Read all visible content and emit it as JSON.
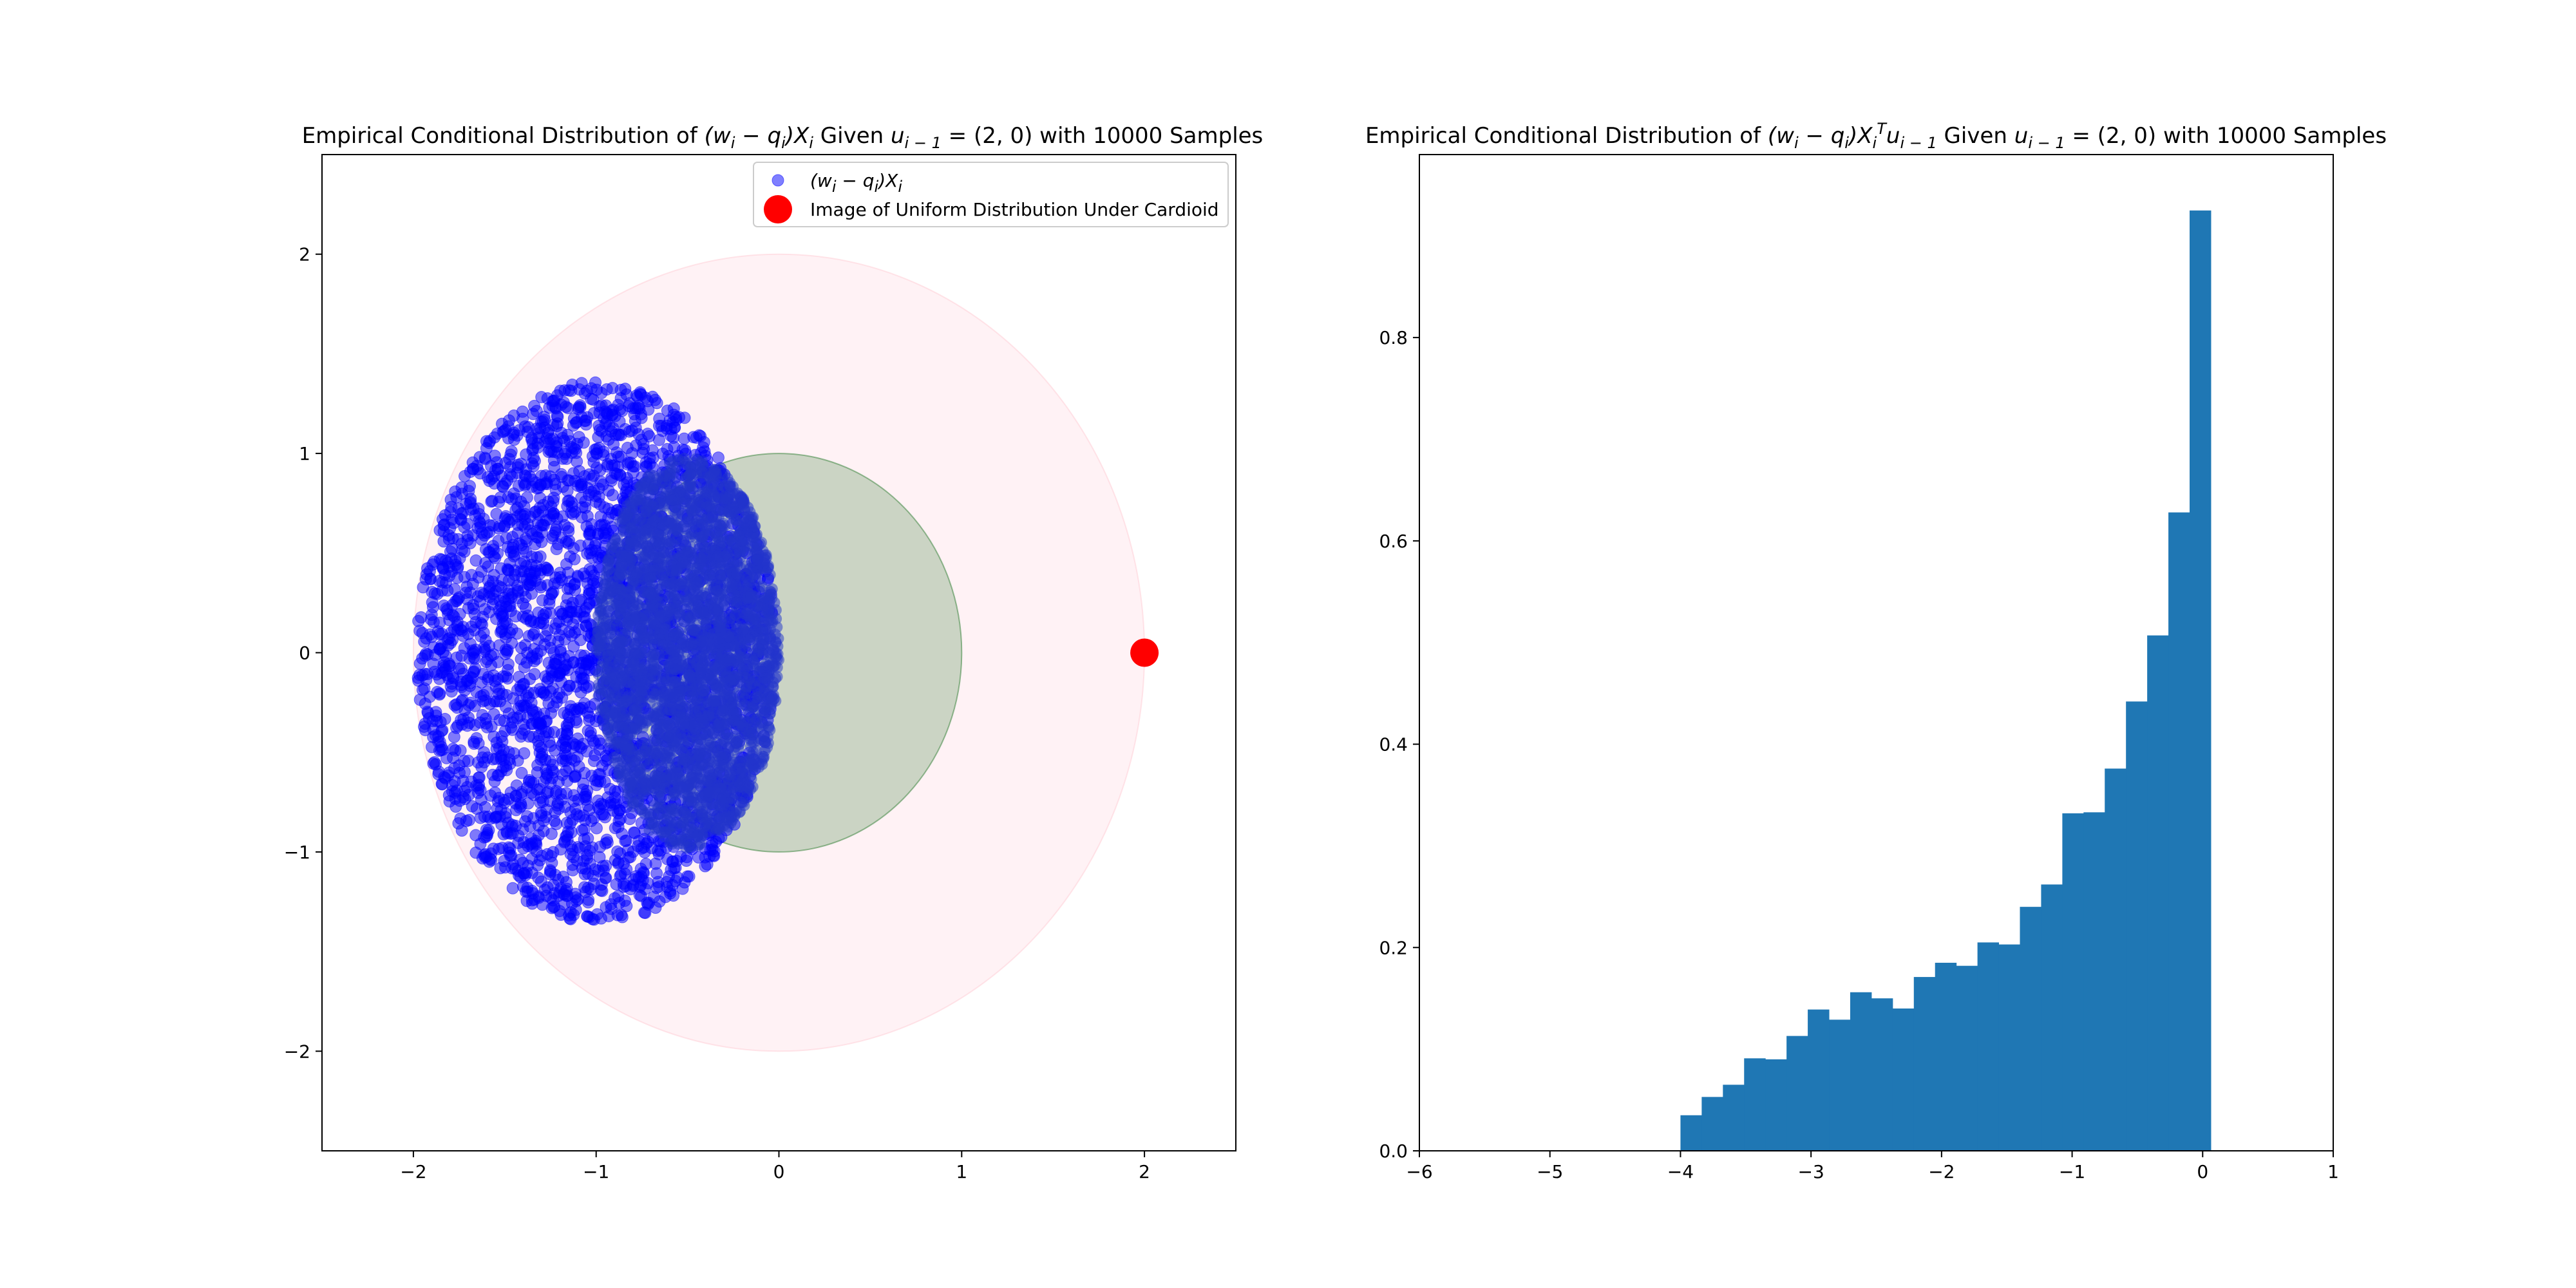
{
  "chart_data": [
    {
      "type": "scatter",
      "title_parts": [
        "Empirical Conditional Distribution of ",
        "(w",
        "i",
        " − q",
        "i",
        ")X",
        "i",
        " Given ",
        "u",
        "i − 1",
        " = (2, 0) with 10000 Samples"
      ],
      "xlim": [
        -2.5,
        2.5
      ],
      "ylim": [
        -2.5,
        2.5
      ],
      "xticks": [
        -2,
        -1,
        0,
        1,
        2
      ],
      "yticks": [
        -2,
        -1,
        0,
        1,
        2
      ],
      "xtick_labels": [
        "−2",
        "−1",
        "0",
        "1",
        "2"
      ],
      "ytick_labels": [
        "−2",
        "−1",
        "0",
        "1",
        "2"
      ],
      "grid": false,
      "legend_position": "top-right",
      "regions": [
        {
          "shape": "circle",
          "center": [
            0,
            0
          ],
          "radius": 2,
          "color": "#ffc0cb",
          "opacity": 0.2
        },
        {
          "shape": "circle",
          "center": [
            0,
            0
          ],
          "radius": 1,
          "color": "#2e7d32",
          "opacity": 0.25
        }
      ],
      "series": [
        {
          "name_parts": [
            "(w",
            "i",
            " − q",
            "i",
            ")X",
            "i"
          ],
          "color": "#0000ff",
          "opacity": 0.5,
          "count": 10000,
          "region": {
            "x_range": [
              -2.0,
              0.05
            ],
            "y_range": [
              -1.35,
              1.38
            ]
          }
        },
        {
          "name": "Image of Uniform Distribution Under Cardioid",
          "color": "#ff0000",
          "points": [
            [
              2,
              0
            ]
          ]
        }
      ]
    },
    {
      "type": "bar",
      "title_parts": [
        "Empirical Conditional Distribution of ",
        "(w",
        "i",
        " − q",
        "i",
        ")X",
        "i",
        "T",
        "u",
        "i − 1",
        " Given ",
        "u",
        "i − 1",
        " = (2, 0) with 10000 Samples"
      ],
      "xlim": [
        -6,
        1
      ],
      "ylim": [
        0,
        0.98
      ],
      "xticks": [
        -6,
        -5,
        -4,
        -3,
        -2,
        -1,
        0,
        1
      ],
      "yticks": [
        0.0,
        0.2,
        0.4,
        0.6,
        0.8
      ],
      "xtick_labels": [
        "−6",
        "−5",
        "−4",
        "−3",
        "−2",
        "−1",
        "0",
        "1"
      ],
      "ytick_labels": [
        "0.0",
        "0.2",
        "0.4",
        "0.6",
        "0.8"
      ],
      "grid": false,
      "color": "#1f77b4",
      "bin_start": -4.0,
      "bin_width": 0.1625,
      "values": [
        0.035,
        0.053,
        0.065,
        0.091,
        0.09,
        0.113,
        0.139,
        0.129,
        0.156,
        0.15,
        0.14,
        0.171,
        0.185,
        0.182,
        0.205,
        0.203,
        0.24,
        0.262,
        0.332,
        0.333,
        0.376,
        0.442,
        0.507,
        0.628,
        0.925
      ]
    }
  ]
}
